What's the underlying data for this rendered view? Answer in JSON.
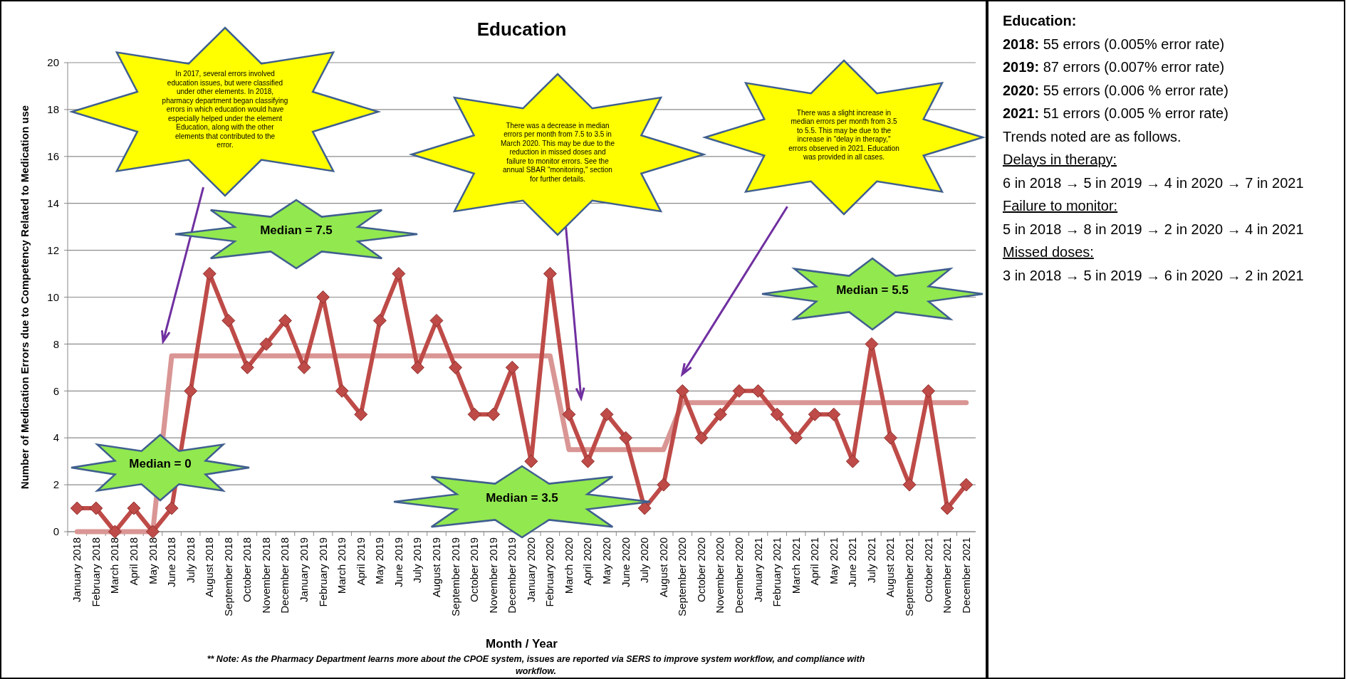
{
  "chart_data": {
    "type": "line",
    "title": "Education",
    "xlabel": "Month / Year",
    "ylabel": "Number of Medication Errors due to Competency Related to Medication use",
    "categories": [
      "January 2018",
      "February 2018",
      "March 2018",
      "April 2018",
      "May 2018",
      "June 2018",
      "July 2018",
      "August 2018",
      "September 2018",
      "October 2018",
      "November 2018",
      "December 2018",
      "January 2019",
      "February 2019",
      "March 2019",
      "April 2019",
      "May 2019",
      "June 2019",
      "July 2019",
      "August 2019",
      "September 2019",
      "October 2019",
      "November 2019",
      "December 2019",
      "January 2020",
      "February 2020",
      "March 2020",
      "April 2020",
      "May 2020",
      "June 2020",
      "July 2020",
      "August 2020",
      "September 2020",
      "October 2020",
      "November 2020",
      "December 2020",
      "January 2021",
      "February 2021",
      "March 2021",
      "April 2021",
      "May 2021",
      "June 2021",
      "July 2021",
      "August 2021",
      "September 2021",
      "October 2021",
      "November 2021",
      "December 2021"
    ],
    "series": [
      {
        "color": "#d99694",
        "marker": "none",
        "values": [
          0,
          0,
          0,
          0,
          0,
          7.5,
          7.5,
          7.5,
          7.5,
          7.5,
          7.5,
          7.5,
          7.5,
          7.5,
          7.5,
          7.5,
          7.5,
          7.5,
          7.5,
          7.5,
          7.5,
          7.5,
          7.5,
          7.5,
          7.5,
          7.5,
          3.5,
          3.5,
          3.5,
          3.5,
          3.5,
          3.5,
          5.5,
          5.5,
          5.5,
          5.5,
          5.5,
          5.5,
          5.5,
          5.5,
          5.5,
          5.5,
          5.5,
          5.5,
          5.5,
          5.5,
          5.5,
          5.5
        ]
      },
      {
        "color": "#be4b48",
        "marker": "diamond",
        "values": [
          1,
          1,
          0,
          1,
          0,
          1,
          6,
          11,
          9,
          7,
          8,
          9,
          7,
          10,
          6,
          5,
          9,
          11,
          7,
          9,
          7,
          5,
          5,
          7,
          3,
          11,
          5,
          3,
          5,
          4,
          1,
          2,
          6,
          4,
          5,
          6,
          6,
          5,
          4,
          5,
          5,
          3,
          8,
          4,
          2,
          6,
          1,
          2
        ]
      }
    ],
    "ylim": [
      0,
      20
    ],
    "yticks": [
      0,
      2,
      4,
      6,
      8,
      10,
      12,
      14,
      16,
      18,
      20
    ],
    "grid": "y",
    "annotations": [
      "In 2017, several errors involved education issues, but were classified under other elements. In 2018, pharmacy department began classifying errors in which education would have especially helped under the element Education, along with the other elements that contributed to the error.",
      "There was a decrease in median errors per month from 7.5 to 3.5 in March 2020. This may be due to the reduction in missed doses and failure to monitor errors. See the annual SBAR \"monitoring,\" section for further details.",
      "There was a slight increase in median errors per month from 3.5 to 5.5. This may be due to the increase in \"delay in therapy,\" errors observed in 2021. Education was provided in all cases.",
      "Median = 0",
      "Median = 7.5",
      "Median = 3.5",
      "Median = 5.5",
      "** Note: As the Pharmacy Department learns more about the CPOE system, issues are reported via SERS to improve system workflow, and compliance with workflow.",
      "Education:",
      "2018: 55 errors (0.005% error rate)",
      "2019: 87 errors (0.007% error rate)",
      "2020: 55 errors (0.006 % error rate)",
      "2021: 51 errors (0.005 % error rate)",
      "Trends noted are as follows.",
      "Delays in therapy:",
      "6 in 2018 → 5 in 2019 → 4 in 2020 → 7 in 2021",
      "Failure to monitor:",
      "5 in 2018 → 8 in 2019 → 2 in 2020 → 4 in 2021",
      "Missed doses:",
      "3 in 2018 → 5 in 2019 → 6 in 2020 → 2 in 2021"
    ]
  }
}
